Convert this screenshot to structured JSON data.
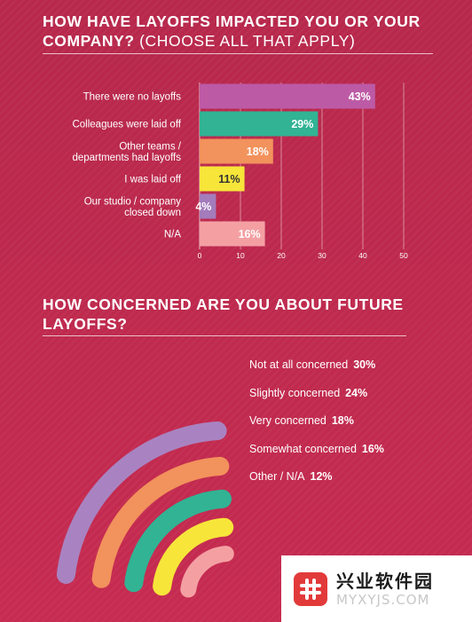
{
  "section1": {
    "title_main": "HOW HAVE LAYOFFS IMPACTED YOU OR YOUR COMPANY?",
    "title_sub": "(CHOOSE ALL THAT APPLY)"
  },
  "section2": {
    "title": "HOW CONCERNED ARE YOU ABOUT FUTURE LAYOFFS?"
  },
  "chart_data": [
    {
      "type": "bar",
      "orientation": "horizontal",
      "title": "HOW HAVE LAYOFFS IMPACTED YOU OR YOUR COMPANY? (CHOOSE ALL THAT APPLY)",
      "categories": [
        [
          "There were no layoffs"
        ],
        [
          "Colleagues were laid off"
        ],
        [
          "Other teams /",
          "departments had layoffs"
        ],
        [
          "I was laid off"
        ],
        [
          "Our studio / company",
          "closed down"
        ],
        [
          "N/A"
        ]
      ],
      "values": [
        43,
        29,
        18,
        11,
        4,
        16
      ],
      "labels": [
        "43%",
        "29%",
        "18%",
        "11%",
        "4%",
        "16%"
      ],
      "colors": [
        "#bd5aa6",
        "#31b394",
        "#f2925c",
        "#f7e53a",
        "#a47cbc",
        "#f4a0a3"
      ],
      "label_colors": [
        "#ffffff",
        "#ffffff",
        "#ffffff",
        "#333333",
        "#ffffff",
        "#ffffff"
      ],
      "xlim": [
        0,
        50
      ],
      "xticks": [
        0,
        10,
        20,
        30,
        40,
        50
      ],
      "grid": true
    },
    {
      "type": "radial-bar",
      "title": "HOW CONCERNED ARE YOU ABOUT FUTURE LAYOFFS?",
      "categories": [
        "Not at all concerned",
        "Slightly concerned",
        "Very concerned",
        "Somewhat concerned",
        "Other / N/A"
      ],
      "values": [
        30,
        24,
        18,
        16,
        12
      ],
      "labels": [
        "30%",
        "24%",
        "18%",
        "16%",
        "12%"
      ],
      "colors": [
        "#a983c1",
        "#f2925c",
        "#31b394",
        "#f7e53a",
        "#f4a0a3"
      ],
      "legend": "right"
    }
  ],
  "watermark": {
    "cn": "兴业软件园",
    "en": "MYXYJS.COM"
  }
}
